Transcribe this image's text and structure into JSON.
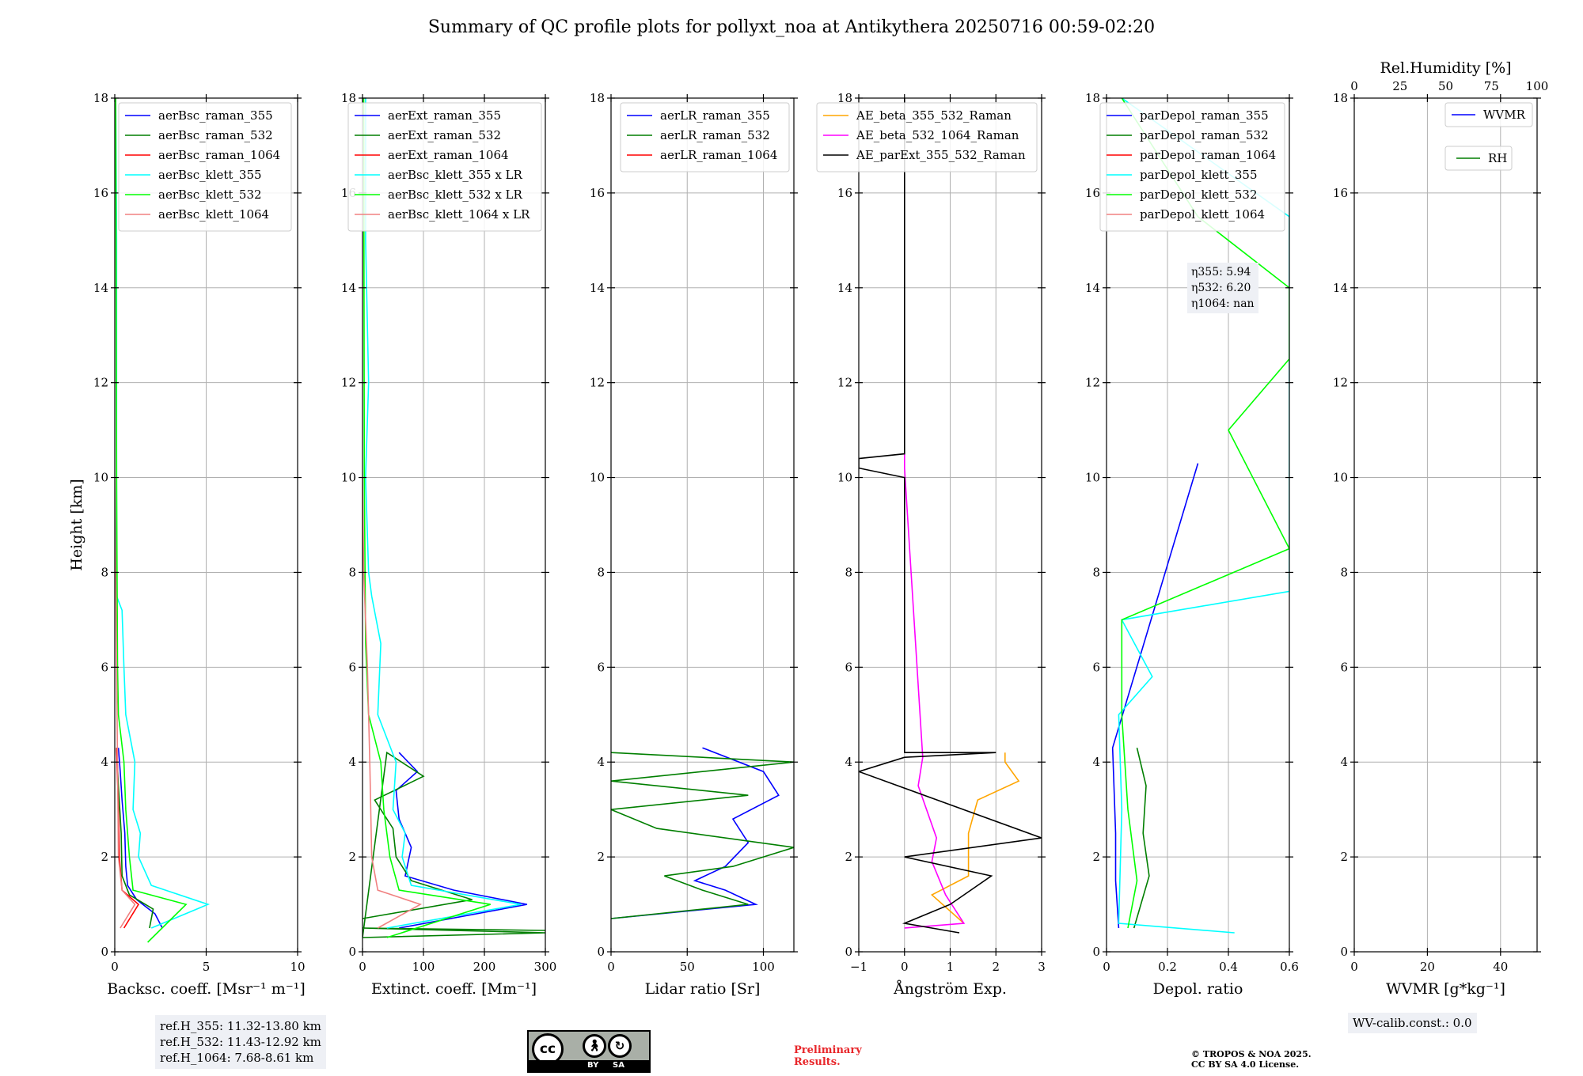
{
  "title": "Summary of QC profile plots for pollyxt_noa at Antikythera 20250716 00:59-02:20",
  "colors": {
    "blue": "#0000ff",
    "green": "#007f00",
    "red": "#ff0000",
    "cyan": "#00ffff",
    "lime": "#00ff00",
    "salmon": "#f08080",
    "orange": "#ffa500",
    "magenta": "#ff00ff",
    "black": "#000000",
    "grid": "#b0b0b0"
  },
  "ref_heights": [
    "ref.H_355: 11.32-13.80 km",
    "ref.H_532: 11.43-12.92 km",
    "ref.H_1064: 7.68-8.61 km"
  ],
  "eta": [
    "η355: 5.94",
    "η532: 6.20",
    "η1064: nan"
  ],
  "wv_calib": "WV-calib.const.: 0.0",
  "license_badge": {
    "by": "BY",
    "sa": "SA"
  },
  "preliminary": [
    "Preliminary",
    "Results."
  ],
  "copyright": [
    "© TROPOS & NOA 2025.",
    "CC BY SA 4.0 License."
  ],
  "chart_data": [
    {
      "type": "line",
      "xlabel": "Backsc. coeff. [Msr⁻¹ m⁻¹]",
      "ylabel": "Height [km]",
      "xlim": [
        0,
        10
      ],
      "ylim": [
        0,
        18
      ],
      "xticks": [
        0,
        5,
        10
      ],
      "yticks": [
        0,
        2,
        4,
        6,
        8,
        10,
        12,
        14,
        16,
        18
      ],
      "grid": true,
      "legend": "top-right",
      "series": [
        {
          "name": "aerBsc_raman_355",
          "color": "blue",
          "points": [
            [
              2.6,
              0.5
            ],
            [
              2.2,
              0.8
            ],
            [
              1.2,
              1.1
            ],
            [
              0.7,
              1.4
            ],
            [
              0.6,
              1.8
            ],
            [
              0.55,
              2.5
            ],
            [
              0.4,
              3.2
            ],
            [
              0.3,
              3.8
            ],
            [
              0.2,
              4.3
            ]
          ]
        },
        {
          "name": "aerBsc_raman_532",
          "color": "green",
          "points": [
            [
              1.9,
              0.5
            ],
            [
              2.1,
              0.9
            ],
            [
              0.8,
              1.2
            ],
            [
              0.4,
              1.6
            ],
            [
              0.35,
              2.5
            ],
            [
              0.2,
              3.5
            ],
            [
              0.1,
              4.3
            ]
          ]
        },
        {
          "name": "aerBsc_raman_1064",
          "color": "red",
          "points": [
            [
              0.5,
              0.5
            ],
            [
              1.3,
              1.0
            ],
            [
              0.4,
              1.3
            ],
            [
              0.25,
              2.0
            ],
            [
              0.2,
              3.0
            ],
            [
              0.1,
              4.3
            ]
          ]
        },
        {
          "name": "aerBsc_klett_355",
          "color": "cyan",
          "points": [
            [
              2.0,
              0.5
            ],
            [
              5.1,
              1.0
            ],
            [
              2.0,
              1.4
            ],
            [
              1.3,
              2.0
            ],
            [
              1.4,
              2.5
            ],
            [
              1.0,
              3.0
            ],
            [
              1.1,
              4.0
            ],
            [
              0.6,
              5.0
            ],
            [
              0.5,
              6.0
            ],
            [
              0.4,
              7.2
            ],
            [
              0.1,
              7.5
            ],
            [
              0.1,
              10.0
            ],
            [
              0.1,
              12.0
            ],
            [
              0.1,
              15.0
            ],
            [
              0.05,
              18.0
            ]
          ]
        },
        {
          "name": "aerBsc_klett_532",
          "color": "lime",
          "points": [
            [
              1.8,
              0.2
            ],
            [
              3.9,
              1.0
            ],
            [
              1.0,
              1.3
            ],
            [
              0.8,
              2.0
            ],
            [
              0.6,
              3.0
            ],
            [
              0.5,
              4.0
            ],
            [
              0.2,
              5.0
            ],
            [
              0.15,
              6.0
            ],
            [
              0.1,
              10.0
            ],
            [
              0.05,
              18.0
            ]
          ]
        },
        {
          "name": "aerBsc_klett_1064",
          "color": "salmon",
          "points": [
            [
              0.3,
              0.5
            ],
            [
              1.1,
              1.0
            ],
            [
              0.4,
              1.3
            ],
            [
              0.2,
              2.0
            ],
            [
              0.15,
              4.0
            ],
            [
              0.1,
              6.0
            ],
            [
              0.05,
              8.0
            ],
            [
              0.0,
              10.0
            ]
          ]
        }
      ]
    },
    {
      "type": "line",
      "xlabel": "Extinct. coeff. [Mm⁻¹]",
      "xlim": [
        0,
        300
      ],
      "ylim": [
        0,
        18
      ],
      "xticks": [
        0,
        100,
        200,
        300
      ],
      "yticks": [
        0,
        2,
        4,
        6,
        8,
        10,
        12,
        14,
        16,
        18
      ],
      "grid": true,
      "legend": "top-right",
      "series": [
        {
          "name": "aerExt_raman_355",
          "color": "blue",
          "points": [
            [
              60,
              0.5
            ],
            [
              270,
              1.0
            ],
            [
              150,
              1.3
            ],
            [
              70,
              1.6
            ],
            [
              80,
              2.2
            ],
            [
              60,
              2.8
            ],
            [
              55,
              3.4
            ],
            [
              90,
              3.8
            ],
            [
              60,
              4.2
            ]
          ]
        },
        {
          "name": "aerExt_raman_532",
          "color": "green",
          "points": [
            [
              0,
              0.7
            ],
            [
              180,
              1.1
            ],
            [
              80,
              1.5
            ],
            [
              55,
              2.0
            ],
            [
              50,
              2.6
            ],
            [
              20,
              3.2
            ],
            [
              100,
              3.7
            ],
            [
              40,
              4.2
            ],
            [
              0,
              0.3
            ],
            [
              300,
              0.4
            ],
            [
              0,
              0.5
            ],
            [
              300,
              0.45
            ]
          ]
        },
        {
          "name": "aerExt_raman_1064",
          "color": "red",
          "points": []
        },
        {
          "name": "aerBsc_klett_355 x LR",
          "color": "cyan",
          "points": [
            [
              40,
              0.5
            ],
            [
              260,
              1.0
            ],
            [
              80,
              1.4
            ],
            [
              65,
              2.0
            ],
            [
              70,
              2.5
            ],
            [
              50,
              3.0
            ],
            [
              55,
              4.0
            ],
            [
              25,
              5.0
            ],
            [
              30,
              6.5
            ],
            [
              15,
              7.5
            ],
            [
              10,
              8.0
            ],
            [
              5,
              10.0
            ],
            [
              10,
              12.0
            ],
            [
              5,
              15.0
            ],
            [
              5,
              18.0
            ]
          ]
        },
        {
          "name": "aerBsc_klett_532 x LR",
          "color": "lime",
          "points": [
            [
              40,
              0.3
            ],
            [
              210,
              1.0
            ],
            [
              60,
              1.3
            ],
            [
              45,
              2.0
            ],
            [
              35,
              3.0
            ],
            [
              30,
              4.0
            ],
            [
              10,
              5.0
            ],
            [
              5,
              6.5
            ],
            [
              3,
              10.0
            ],
            [
              2,
              18.0
            ]
          ]
        },
        {
          "name": "aerBsc_klett_1064 x LR",
          "color": "salmon",
          "points": [
            [
              25,
              0.5
            ],
            [
              95,
              1.0
            ],
            [
              25,
              1.3
            ],
            [
              15,
              2.0
            ],
            [
              12,
              4.0
            ],
            [
              8,
              6.0
            ],
            [
              2,
              8.0
            ],
            [
              0,
              10.0
            ]
          ]
        }
      ]
    },
    {
      "type": "line",
      "xlabel": "Lidar ratio [Sr]",
      "xlim": [
        0,
        120
      ],
      "ylim": [
        0,
        18
      ],
      "xticks": [
        0,
        50,
        100
      ],
      "yticks": [
        0,
        2,
        4,
        6,
        8,
        10,
        12,
        14,
        16,
        18
      ],
      "grid": true,
      "legend": "top-right",
      "series": [
        {
          "name": "aerLR_raman_355",
          "color": "blue",
          "points": [
            [
              0,
              0.7
            ],
            [
              95,
              1.0
            ],
            [
              75,
              1.3
            ],
            [
              55,
              1.5
            ],
            [
              75,
              1.8
            ],
            [
              90,
              2.3
            ],
            [
              80,
              2.8
            ],
            [
              110,
              3.3
            ],
            [
              100,
              3.8
            ],
            [
              60,
              4.3
            ]
          ]
        },
        {
          "name": "aerLR_raman_532",
          "color": "green",
          "points": [
            [
              0,
              0.7
            ],
            [
              90,
              1.0
            ],
            [
              60,
              1.3
            ],
            [
              35,
              1.6
            ],
            [
              80,
              1.8
            ],
            [
              120,
              2.2
            ],
            [
              30,
              2.6
            ],
            [
              0,
              3.0
            ],
            [
              90,
              3.3
            ],
            [
              0,
              3.6
            ],
            [
              120,
              4.0
            ],
            [
              0,
              4.2
            ]
          ]
        },
        {
          "name": "aerLR_raman_1064",
          "color": "red",
          "points": []
        }
      ]
    },
    {
      "type": "line",
      "xlabel": "Ångström Exp.",
      "xlim": [
        -1,
        3
      ],
      "ylim": [
        0,
        18
      ],
      "xticks": [
        -1,
        0,
        1,
        2,
        3
      ],
      "yticks": [
        0,
        2,
        4,
        6,
        8,
        10,
        12,
        14,
        16,
        18
      ],
      "grid": true,
      "legend": "top-left",
      "series": [
        {
          "name": "AE_beta_355_532_Raman",
          "color": "orange",
          "points": [
            [
              1.3,
              0.6
            ],
            [
              0.6,
              1.2
            ],
            [
              1.4,
              1.6
            ],
            [
              1.4,
              2.5
            ],
            [
              1.6,
              3.2
            ],
            [
              2.5,
              3.6
            ],
            [
              2.2,
              4.0
            ],
            [
              2.2,
              4.2
            ]
          ]
        },
        {
          "name": "AE_beta_532_1064_Raman",
          "color": "magenta",
          "points": [
            [
              0.0,
              0.5
            ],
            [
              1.3,
              0.6
            ],
            [
              0.9,
              1.2
            ],
            [
              0.6,
              1.9
            ],
            [
              0.7,
              2.4
            ],
            [
              0.3,
              3.5
            ],
            [
              0.4,
              4.1
            ],
            [
              0.0,
              10.2
            ],
            [
              0.0,
              10.5
            ]
          ]
        },
        {
          "name": "AE_parExt_355_532_Raman",
          "color": "black",
          "points": [
            [
              1.2,
              0.4
            ],
            [
              0.0,
              0.6
            ],
            [
              1.0,
              1.0
            ],
            [
              1.9,
              1.6
            ],
            [
              0.0,
              2.0
            ],
            [
              3.0,
              2.4
            ],
            [
              -1.0,
              3.8
            ],
            [
              0.0,
              4.1
            ],
            [
              2.0,
              4.2
            ],
            [
              0.0,
              4.2
            ],
            [
              0.0,
              10.0
            ],
            [
              -1.0,
              10.2
            ],
            [
              -1.0,
              10.4
            ],
            [
              0.0,
              10.5
            ],
            [
              0.0,
              18.0
            ]
          ]
        }
      ]
    },
    {
      "type": "line",
      "xlabel": "Depol. ratio",
      "xlim": [
        0,
        0.6
      ],
      "ylim": [
        0,
        18
      ],
      "xticks": [
        0.0,
        0.2,
        0.4,
        0.6
      ],
      "yticks": [
        0,
        2,
        4,
        6,
        8,
        10,
        12,
        14,
        16,
        18
      ],
      "grid": true,
      "legend": "top-left",
      "series": [
        {
          "name": "parDepol_raman_355",
          "color": "blue",
          "points": [
            [
              0.04,
              0.5
            ],
            [
              0.03,
              1.5
            ],
            [
              0.03,
              2.5
            ],
            [
              0.02,
              4.3
            ],
            [
              0.3,
              10.3
            ]
          ]
        },
        {
          "name": "parDepol_raman_532",
          "color": "green",
          "points": [
            [
              0.09,
              0.5
            ],
            [
              0.14,
              1.6
            ],
            [
              0.12,
              2.5
            ],
            [
              0.13,
              3.5
            ],
            [
              0.1,
              4.3
            ]
          ]
        },
        {
          "name": "parDepol_raman_1064",
          "color": "red",
          "points": []
        },
        {
          "name": "parDepol_klett_355",
          "color": "cyan",
          "points": [
            [
              0.42,
              0.4
            ],
            [
              0.04,
              0.6
            ],
            [
              0.05,
              3.0
            ],
            [
              0.04,
              5.0
            ],
            [
              0.15,
              5.8
            ],
            [
              0.05,
              7.0
            ],
            [
              0.6,
              7.6
            ],
            [
              0.6,
              10.0
            ],
            [
              0.6,
              12.0
            ],
            [
              0.6,
              13.5
            ],
            [
              0.6,
              15.5
            ],
            [
              0.05,
              18.0
            ]
          ]
        },
        {
          "name": "parDepol_klett_532",
          "color": "lime",
          "points": [
            [
              0.07,
              0.5
            ],
            [
              0.1,
              1.5
            ],
            [
              0.07,
              3.0
            ],
            [
              0.05,
              5.0
            ],
            [
              0.05,
              7.0
            ],
            [
              0.6,
              8.5
            ],
            [
              0.4,
              11.0
            ],
            [
              0.6,
              12.5
            ],
            [
              0.6,
              14.0
            ],
            [
              0.3,
              15.5
            ],
            [
              0.05,
              18.0
            ]
          ]
        },
        {
          "name": "parDepol_klett_1064",
          "color": "salmon",
          "points": []
        }
      ]
    },
    {
      "type": "line",
      "xlabel": "WVMR [g*kg⁻¹]",
      "x2label": "Rel.Humidity [%]",
      "xlim": [
        0,
        50
      ],
      "x2lim": [
        0,
        100
      ],
      "ylim": [
        0,
        18
      ],
      "xticks": [
        0,
        20,
        40
      ],
      "x2ticks": [
        0,
        25,
        50,
        75,
        100
      ],
      "yticks": [
        0,
        2,
        4,
        6,
        8,
        10,
        12,
        14,
        16,
        18
      ],
      "grid": true,
      "legend": "top-right",
      "series": [
        {
          "name": "WVMR",
          "color": "blue",
          "points": []
        },
        {
          "name": "RH",
          "color": "green",
          "points": []
        }
      ]
    }
  ]
}
